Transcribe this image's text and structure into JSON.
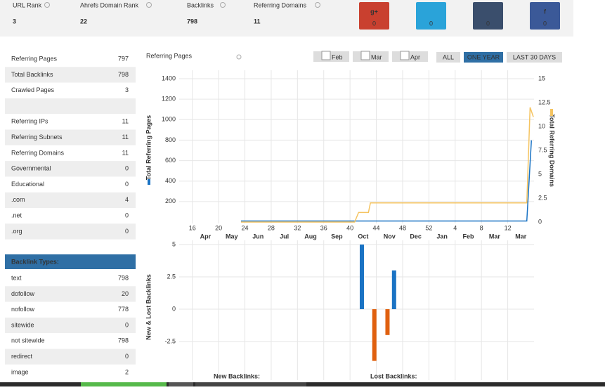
{
  "header": {
    "metrics": [
      {
        "label": "URL Rank",
        "value": 3,
        "color": "#1f3a5f"
      },
      {
        "label": "Ahrefs Domain Rank",
        "value": 22,
        "color": "#6a9a2e"
      },
      {
        "label": "Backlinks",
        "value": 798,
        "color": "#3b6e9e"
      },
      {
        "label": "Referring Domains",
        "value": 11,
        "color": "#222222"
      }
    ],
    "social": [
      {
        "label": "g+",
        "count": 0,
        "color": "#c9402f"
      },
      {
        "count": 0,
        "color": "#2aa3d9"
      },
      {
        "count": 0,
        "color": "#3a4e6c"
      },
      {
        "label": "f",
        "count": 0,
        "color": "#3b5998"
      }
    ]
  },
  "stats": {
    "groups": [
      [
        {
          "label": "Referring Pages",
          "value": 797
        },
        {
          "label": "Total Backlinks",
          "value": 798,
          "link": true
        },
        {
          "label": "Crawled Pages",
          "value": 3
        }
      ],
      [
        {
          "label": "Referring IPs",
          "value": 11
        },
        {
          "label": "Referring Subnets",
          "value": 11,
          "link": true
        },
        {
          "label": "Referring Domains",
          "value": 11,
          "link": true
        },
        {
          "label": "Governmental",
          "value": 0
        },
        {
          "label": "Educational",
          "value": 0
        },
        {
          "label": ".com",
          "value": 4,
          "link": true
        },
        {
          "label": ".net",
          "value": 0
        },
        {
          "label": ".org",
          "value": 0
        }
      ]
    ]
  },
  "backlink_types": {
    "title": "Backlink Types:",
    "rows": [
      {
        "label": "text",
        "value": 798
      },
      {
        "label": "dofollow",
        "value": 20,
        "link": true
      },
      {
        "label": "nofollow",
        "value": 778,
        "link": true
      },
      {
        "label": "sitewide",
        "value": 0
      },
      {
        "label": "not sitewide",
        "value": 798,
        "link": true
      },
      {
        "label": "redirect",
        "value": 0
      },
      {
        "label": "image",
        "value": 2
      }
    ]
  },
  "toolbar": {
    "title": "Referring Pages",
    "months": [
      "Feb",
      "Mar",
      "Apr"
    ],
    "ranges": [
      "ALL",
      "ONE YEAR",
      "LAST 30 DAYS"
    ],
    "active_range": 1
  },
  "chart_data": [
    {
      "type": "line",
      "xlim": [
        14,
        68
      ],
      "xticks": [
        16,
        20,
        24,
        28,
        32,
        36,
        40,
        44,
        48,
        52,
        {
          "value": 56,
          "label": "4"
        },
        {
          "value": 60,
          "label": "8"
        },
        {
          "value": 64,
          "label": "12"
        }
      ],
      "month_ticks": [
        {
          "value": 18,
          "label": "Apr"
        },
        {
          "value": 22,
          "label": "May"
        },
        {
          "value": 26,
          "label": "Jun"
        },
        {
          "value": 30,
          "label": "Jul"
        },
        {
          "value": 34,
          "label": "Aug"
        },
        {
          "value": 38,
          "label": "Sep"
        },
        {
          "value": 42,
          "label": "Oct"
        },
        {
          "value": 46,
          "label": "Nov"
        },
        {
          "value": 50,
          "label": "Dec"
        },
        {
          "value": 54,
          "label": "Jan"
        },
        {
          "value": 58,
          "label": "Feb"
        },
        {
          "value": 62,
          "label": "Mar"
        },
        {
          "value": 66,
          "label": "Mar"
        }
      ],
      "ylim": [
        0,
        1400
      ],
      "yticks": [
        200,
        400,
        600,
        800,
        1000,
        1200,
        1400
      ],
      "y2lim": [
        0,
        15
      ],
      "y2ticks": [
        0,
        2.5,
        5,
        7.5,
        10,
        12.5,
        15
      ],
      "ylabel": "Total Referring Pages",
      "y2label": "Total Referring Domains",
      "grid": true,
      "series": [
        {
          "color": "#1a73c4",
          "x": [
            23.4,
            66.9,
            67.6
          ],
          "values": [
            10,
            10,
            798
          ]
        },
        {
          "color": "#f5c461",
          "axis": "y2",
          "x": [
            23.4,
            40.7,
            41.3,
            42.8,
            43.1,
            66.9,
            67.4,
            67.9
          ],
          "values": [
            0,
            0,
            1,
            1,
            2,
            2,
            12,
            11
          ]
        }
      ]
    },
    {
      "type": "bar",
      "xlim": [
        14,
        68
      ],
      "xticks": [
        16,
        20,
        24,
        28,
        32,
        36,
        40,
        44,
        48,
        52,
        56,
        60,
        64
      ],
      "ylim": [
        -5,
        5
      ],
      "yticks": [
        5,
        2.5,
        0,
        -2.5
      ],
      "ylabel": "New & Lost Backlinks",
      "grid": true,
      "series": [
        {
          "name": "New Backlinks:",
          "color": "#1a73c4",
          "x": [
            41.8,
            46.7
          ],
          "values": [
            5,
            3
          ]
        },
        {
          "name": "Lost Backlinks:",
          "color": "#e0600f",
          "x": [
            43.7,
            45.7
          ],
          "values": [
            -4,
            -2
          ]
        }
      ]
    }
  ]
}
